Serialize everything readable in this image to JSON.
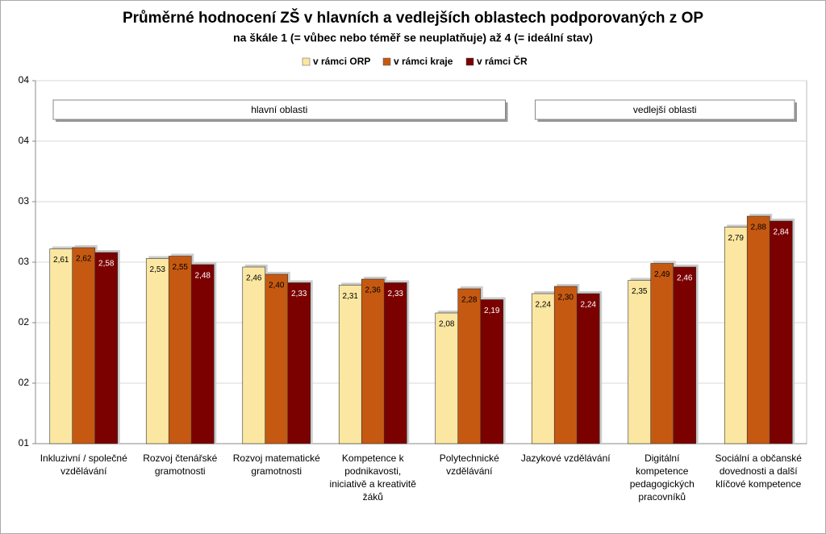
{
  "chart_data": {
    "type": "bar",
    "title": "Průměrné hodnocení ZŠ v hlavních a vedlejších oblastech podporovaných z OP",
    "subtitle": "na škále 1 (= vůbec nebo téměř se neuplatňuje) až 4 (= ideální stav)",
    "categories": [
      "Inkluzivní / společné vzdělávání",
      "Rozvoj čtenářské gramotnosti",
      "Rozvoj matematické gramotnosti",
      "Kompetence k podnikavosti, iniciativě a kreativitě žáků",
      "Polytechnické vzdělávání",
      "Jazykové vzdělávání",
      "Digitální kompetence pedagogických pracovníků",
      "Sociální a občanské dovednosti a další klíčové kompetence"
    ],
    "series": [
      {
        "name": "v rámci ORP",
        "color": "#fbe7a1",
        "values": [
          2.61,
          2.53,
          2.46,
          2.31,
          2.08,
          2.24,
          2.35,
          2.79
        ],
        "value_labels": [
          "2,61",
          "2,53",
          "2,46",
          "2,31",
          "2,08",
          "2,24",
          "2,35",
          "2,79"
        ]
      },
      {
        "name": "v rámci kraje",
        "color": "#c65911",
        "values": [
          2.62,
          2.55,
          2.4,
          2.36,
          2.28,
          2.3,
          2.49,
          2.88
        ],
        "value_labels": [
          "2,62",
          "2,55",
          "2,40",
          "2,36",
          "2,28",
          "2,30",
          "2,49",
          "2,88"
        ]
      },
      {
        "name": "v rámci ČR",
        "color": "#7b0000",
        "values": [
          2.58,
          2.48,
          2.33,
          2.33,
          2.19,
          2.24,
          2.46,
          2.84
        ],
        "value_labels": [
          "2,58",
          "2,48",
          "2,33",
          "2,33",
          "2,19",
          "2,24",
          "2,46",
          "2,84"
        ]
      }
    ],
    "ylim": [
      1,
      4
    ],
    "yticks": [
      {
        "value": 1,
        "label": "01"
      },
      {
        "value": 1.5,
        "label": "02"
      },
      {
        "value": 2,
        "label": "02"
      },
      {
        "value": 2.5,
        "label": "03"
      },
      {
        "value": 3,
        "label": "03"
      },
      {
        "value": 3.5,
        "label": "04"
      },
      {
        "value": 4,
        "label": "04"
      }
    ],
    "grid": true,
    "legend": "top",
    "annotations": [
      "hlavní oblasti",
      "vedlejší oblasti"
    ]
  }
}
